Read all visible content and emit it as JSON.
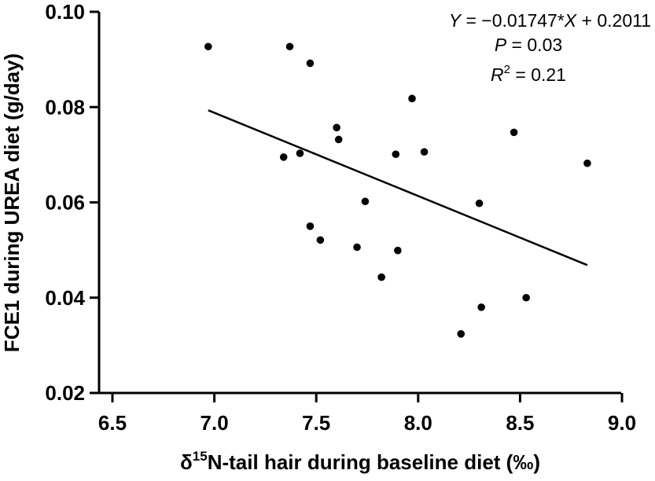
{
  "chart_data": {
    "type": "scatter",
    "xlabel_prefix": "δ",
    "xlabel_sup": "15",
    "xlabel_rest": "N-tail hair during baseline diet (‰)",
    "ylabel": "FCE1 during UREA diet (g/day)",
    "xlim": [
      6.5,
      9.0
    ],
    "ylim": [
      0.02,
      0.1
    ],
    "xticks": [
      "6.5",
      "7.0",
      "7.5",
      "8.0",
      "8.5",
      "9.0"
    ],
    "yticks": [
      "0.02",
      "0.04",
      "0.06",
      "0.08",
      "0.10"
    ],
    "grid": false,
    "points": [
      {
        "x": 6.97,
        "y": 0.0927
      },
      {
        "x": 7.37,
        "y": 0.0927
      },
      {
        "x": 7.47,
        "y": 0.0892
      },
      {
        "x": 7.34,
        "y": 0.0695
      },
      {
        "x": 7.42,
        "y": 0.0703
      },
      {
        "x": 7.6,
        "y": 0.0757
      },
      {
        "x": 7.61,
        "y": 0.0732
      },
      {
        "x": 7.74,
        "y": 0.0602
      },
      {
        "x": 7.47,
        "y": 0.055
      },
      {
        "x": 7.52,
        "y": 0.0521
      },
      {
        "x": 7.7,
        "y": 0.0506
      },
      {
        "x": 7.9,
        "y": 0.0499
      },
      {
        "x": 7.82,
        "y": 0.0443
      },
      {
        "x": 7.89,
        "y": 0.0701
      },
      {
        "x": 8.03,
        "y": 0.0706
      },
      {
        "x": 7.97,
        "y": 0.0818
      },
      {
        "x": 8.3,
        "y": 0.0598
      },
      {
        "x": 8.31,
        "y": 0.038
      },
      {
        "x": 8.21,
        "y": 0.0324
      },
      {
        "x": 8.47,
        "y": 0.0747
      },
      {
        "x": 8.53,
        "y": 0.04
      },
      {
        "x": 8.83,
        "y": 0.0682
      }
    ],
    "regression": {
      "slope": -0.01747,
      "intercept": 0.2011,
      "x_start": 6.97,
      "x_end": 8.83
    },
    "annotations": {
      "equation_y": "Y",
      "equation_mid": " = −0.01747*",
      "equation_x": "X",
      "equation_end": " + 0.2011",
      "p_label": "P",
      "p_value": " = 0.03",
      "r_label": "R",
      "r_sup": "2",
      "r_value": " = 0.21"
    }
  }
}
